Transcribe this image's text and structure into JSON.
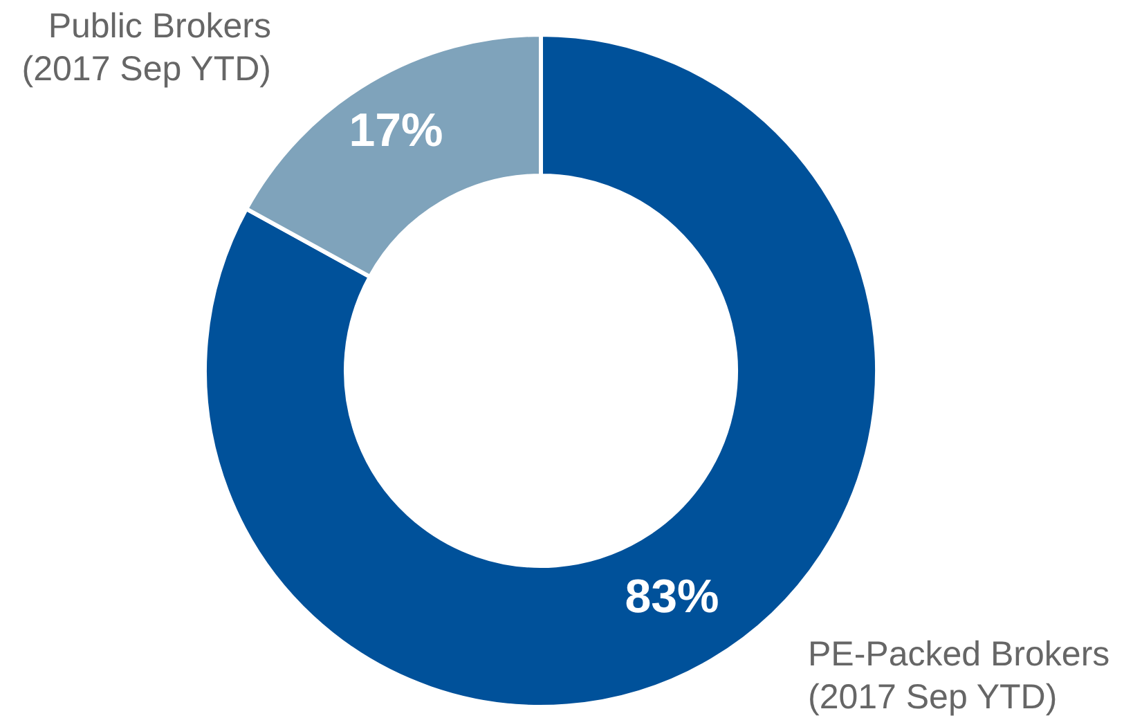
{
  "chart_data": {
    "type": "donut",
    "categories": [
      "PE-Packed Brokers (2017 Sep YTD)",
      "Public Brokers (2017 Sep YTD)"
    ],
    "values": [
      83,
      17
    ],
    "colors": [
      "#00519a",
      "#7fa3bb"
    ],
    "value_labels": [
      "83%",
      "17%"
    ],
    "legend": false
  }
}
